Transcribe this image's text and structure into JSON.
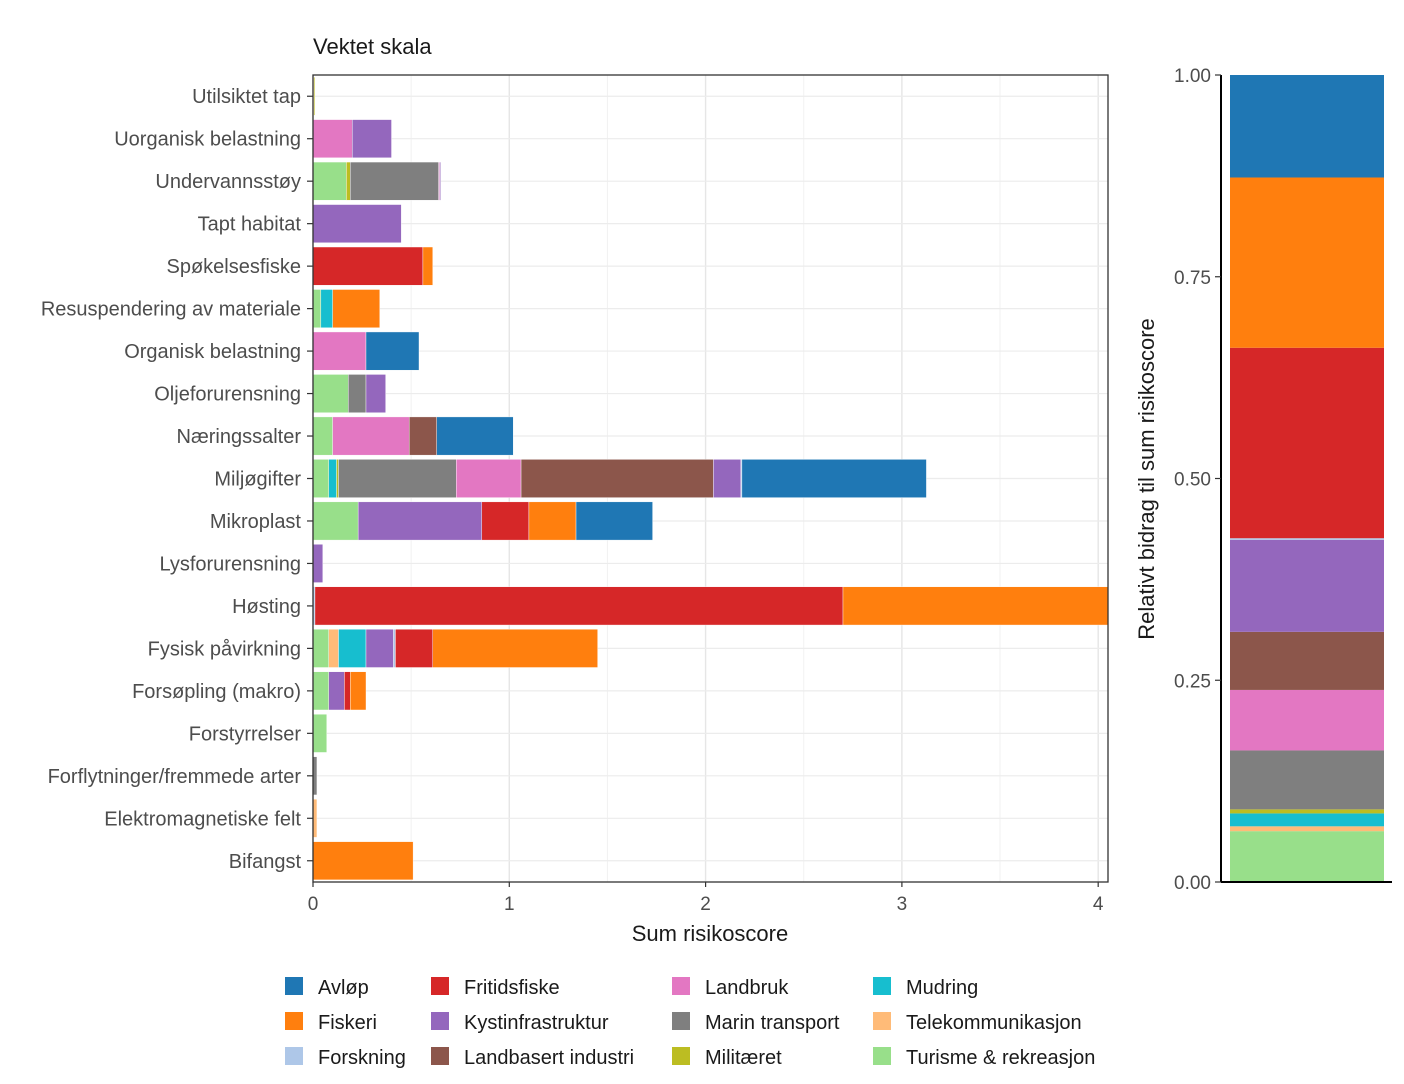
{
  "chart_data": [
    {
      "type": "bar",
      "orientation": "horizontal",
      "stacked": true,
      "title": "Vektet skala",
      "xlabel": "Sum risikoscore",
      "ylabel": "",
      "xlim": [
        0,
        4.05
      ],
      "xticks": [
        0,
        1,
        2,
        3,
        4
      ],
      "grid": true,
      "categories": [
        "Utilsiktet tap",
        "Uorganisk belastning",
        "Undervannsstøy",
        "Tapt habitat",
        "Spøkelsesfiske",
        "Resuspendering av materiale",
        "Organisk belastning",
        "Oljeforurensning",
        "Næringssalter",
        "Miljøgifter",
        "Mikroplast",
        "Lysforurensning",
        "Høsting",
        "Fysisk påvirkning",
        "Forsøpling (makro)",
        "Forstyrrelser",
        "Forflytninger/fremmede arter",
        "Elektromagnetiske felt",
        "Bifangst"
      ],
      "stack_order": [
        "Turisme & rekreasjon",
        "Telekommunikasjon",
        "Mudring",
        "Militæret",
        "Marin transport",
        "Landbruk",
        "Landbasert industri",
        "Kystinfrastruktur",
        "Forskning",
        "Fritidsfiske",
        "Fiskeri",
        "Avløp"
      ],
      "series": [
        {
          "name": "Avløp",
          "color": "#1f77b4",
          "values": [
            0,
            0,
            0,
            0,
            0,
            0,
            0.27,
            0,
            0.39,
            0.94,
            0.39,
            0,
            0,
            0,
            0,
            0,
            0,
            0,
            0
          ]
        },
        {
          "name": "Fiskeri",
          "color": "#ff7f0e",
          "values": [
            0,
            0,
            0,
            0,
            0.05,
            0.24,
            0,
            0,
            0,
            0,
            0.24,
            0,
            1.35,
            0.84,
            0.08,
            0,
            0,
            0,
            0.51
          ]
        },
        {
          "name": "Forskning",
          "color": "#aec7e8",
          "values": [
            0,
            0,
            0,
            0,
            0,
            0,
            0,
            0,
            0,
            0.005,
            0,
            0,
            0.01,
            0.01,
            0,
            0,
            0,
            0,
            0
          ]
        },
        {
          "name": "Fritidsfiske",
          "color": "#d62728",
          "values": [
            0,
            0,
            0,
            0,
            0.56,
            0,
            0,
            0,
            0,
            0,
            0.24,
            0,
            2.69,
            0.19,
            0.03,
            0,
            0,
            0,
            0
          ]
        },
        {
          "name": "Kystinfrastruktur",
          "color": "#9467bd",
          "values": [
            0,
            0.2,
            0.005,
            0.45,
            0,
            0,
            0,
            0.1,
            0,
            0.14,
            0.63,
            0.05,
            0,
            0.14,
            0.08,
            0,
            0,
            0,
            0
          ]
        },
        {
          "name": "Landbasert industri",
          "color": "#8c564b",
          "values": [
            0,
            0,
            0,
            0,
            0,
            0,
            0,
            0,
            0.14,
            0.98,
            0,
            0,
            0,
            0,
            0,
            0,
            0,
            0,
            0
          ]
        },
        {
          "name": "Landbruk",
          "color": "#e377c2",
          "values": [
            0,
            0.2,
            0.005,
            0,
            0,
            0,
            0.27,
            0,
            0.39,
            0.33,
            0,
            0,
            0,
            0,
            0,
            0,
            0,
            0,
            0
          ]
        },
        {
          "name": "Marin transport",
          "color": "#7f7f7f",
          "values": [
            0,
            0,
            0.45,
            0,
            0,
            0,
            0,
            0.09,
            0,
            0.6,
            0,
            0,
            0,
            0,
            0,
            0,
            0.02,
            0,
            0
          ]
        },
        {
          "name": "Militæret",
          "color": "#bcbd22",
          "values": [
            0.005,
            0,
            0.02,
            0,
            0,
            0,
            0,
            0,
            0,
            0.01,
            0,
            0,
            0,
            0,
            0,
            0,
            0,
            0,
            0
          ]
        },
        {
          "name": "Mudring",
          "color": "#17becf",
          "values": [
            0,
            0,
            0,
            0,
            0,
            0.06,
            0,
            0,
            0,
            0.04,
            0,
            0,
            0,
            0.14,
            0,
            0,
            0,
            0,
            0
          ]
        },
        {
          "name": "Telekommunikasjon",
          "color": "#ffbb78",
          "values": [
            0.005,
            0,
            0,
            0,
            0,
            0,
            0,
            0,
            0,
            0,
            0,
            0,
            0,
            0.05,
            0,
            0,
            0,
            0.02,
            0
          ]
        },
        {
          "name": "Turisme & rekreasjon",
          "color": "#98df8a",
          "values": [
            0,
            0,
            0.17,
            0,
            0,
            0.04,
            0,
            0.18,
            0.1,
            0.08,
            0.23,
            0,
            0,
            0.08,
            0.08,
            0.07,
            0,
            0,
            0
          ]
        }
      ]
    },
    {
      "type": "bar",
      "orientation": "vertical",
      "stacked": true,
      "title": "",
      "xlabel": "",
      "ylabel": "Relativt bidrag til sum risikoscore",
      "ylim": [
        0,
        1
      ],
      "yticks": [
        "0.00",
        "0.25",
        "0.50",
        "0.75",
        "1.00"
      ],
      "segments": [
        {
          "name": "Turisme & rekreasjon",
          "color": "#98df8a",
          "value": 0.063
        },
        {
          "name": "Telekommunikasjon",
          "color": "#ffbb78",
          "value": 0.006
        },
        {
          "name": "Mudring",
          "color": "#17becf",
          "value": 0.016
        },
        {
          "name": "Militæret",
          "color": "#bcbd22",
          "value": 0.005
        },
        {
          "name": "Marin transport",
          "color": "#7f7f7f",
          "value": 0.073
        },
        {
          "name": "Landbruk",
          "color": "#e377c2",
          "value": 0.075
        },
        {
          "name": "Landbasert industri",
          "color": "#8c564b",
          "value": 0.072
        },
        {
          "name": "Kystinfrastruktur",
          "color": "#9467bd",
          "value": 0.114
        },
        {
          "name": "Forskning",
          "color": "#aec7e8",
          "value": 0.002
        },
        {
          "name": "Fritidsfiske",
          "color": "#d62728",
          "value": 0.236
        },
        {
          "name": "Fiskeri",
          "color": "#ff7f0e",
          "value": 0.211
        },
        {
          "name": "Avløp",
          "color": "#1f77b4",
          "value": 0.127
        }
      ]
    }
  ],
  "legend": {
    "position": "bottom",
    "items": [
      {
        "label": "Avløp",
        "color": "#1f77b4"
      },
      {
        "label": "Fiskeri",
        "color": "#ff7f0e"
      },
      {
        "label": "Forskning",
        "color": "#aec7e8"
      },
      {
        "label": "Fritidsfiske",
        "color": "#d62728"
      },
      {
        "label": "Kystinfrastruktur",
        "color": "#9467bd"
      },
      {
        "label": "Landbasert industri",
        "color": "#8c564b"
      },
      {
        "label": "Landbruk",
        "color": "#e377c2"
      },
      {
        "label": "Marin transport",
        "color": "#7f7f7f"
      },
      {
        "label": "Militæret",
        "color": "#bcbd22"
      },
      {
        "label": "Mudring",
        "color": "#17becf"
      },
      {
        "label": "Telekommunikasjon",
        "color": "#ffbb78"
      },
      {
        "label": "Turisme & rekreasjon",
        "color": "#98df8a"
      }
    ]
  }
}
